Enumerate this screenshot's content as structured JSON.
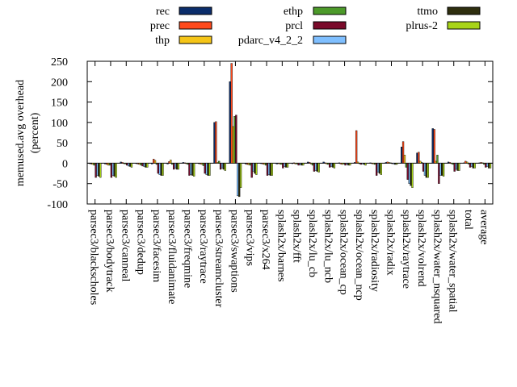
{
  "chart_data": {
    "type": "bar",
    "ylabel_lines": [
      "memused.avg overhead",
      "(percent)"
    ],
    "ylim": [
      -100,
      250
    ],
    "yticks": [
      -100,
      -50,
      0,
      50,
      100,
      150,
      200,
      250
    ],
    "legend_placement": "top",
    "categories": [
      "parsec3/blackscholes",
      "parsec3/bodytrack",
      "parsec3/canneal",
      "parsec3/dedup",
      "parsec3/facesim",
      "parsec3/fluidanimate",
      "parsec3/freqmine",
      "parsec3/raytrace",
      "parsec3/streamcluster",
      "parsec3/swaptions",
      "parsec3/vips",
      "parsec3/x264",
      "splash2x/barnes",
      "splash2x/fft",
      "splash2x/lu_cb",
      "splash2x/lu_ncb",
      "splash2x/ocean_cp",
      "splash2x/ocean_ncp",
      "splash2x/radiosity",
      "splash2x/radix",
      "splash2x/raytrace",
      "splash2x/volrend",
      "splash2x/water_nsquared",
      "splash2x/water_spatial",
      "total",
      "average"
    ],
    "series": [
      {
        "name": "rec",
        "color": "#0b2d6b",
        "values": [
          -1,
          -2,
          3,
          -1,
          -2,
          -2,
          2,
          -1,
          100,
          200,
          -2,
          -1,
          -2,
          -1,
          3,
          3,
          1,
          2,
          1,
          2,
          40,
          25,
          85,
          3,
          1,
          1
        ]
      },
      {
        "name": "prec",
        "color": "#ff4a1c",
        "values": [
          -2,
          -3,
          2,
          -2,
          10,
          4,
          1,
          -2,
          102,
          245,
          -3,
          -2,
          -1,
          1,
          2,
          1,
          -2,
          80,
          -1,
          3,
          53,
          27,
          83,
          2,
          5,
          2
        ]
      },
      {
        "name": "thp",
        "color": "#f5c518",
        "values": [
          -3,
          -5,
          -1,
          -3,
          7,
          8,
          0,
          -3,
          2,
          90,
          -4,
          -3,
          -2,
          -2,
          -2,
          -2,
          -3,
          3,
          -2,
          2,
          20,
          5,
          5,
          -1,
          3,
          1
        ]
      },
      {
        "name": "ethp",
        "color": "#4c9a2a",
        "values": [
          -5,
          -5,
          -2,
          -5,
          -3,
          -3,
          -3,
          -6,
          5,
          115,
          -5,
          -5,
          -3,
          -2,
          -5,
          -3,
          -2,
          -1,
          -3,
          1,
          -10,
          2,
          20,
          -3,
          -2,
          -3
        ]
      },
      {
        "name": "prcl",
        "color": "#7a0a2a",
        "values": [
          -35,
          -35,
          -5,
          -7,
          -25,
          -15,
          -30,
          -25,
          -15,
          118,
          -35,
          -30,
          -12,
          -5,
          -20,
          -10,
          -5,
          -3,
          -30,
          -1,
          -40,
          -20,
          -50,
          -20,
          -10,
          -10
        ]
      },
      {
        "name": "pdarc_v4_2_2",
        "color": "#7fbfff",
        "values": [
          -30,
          -30,
          -7,
          -8,
          -28,
          -12,
          -28,
          -28,
          -12,
          -80,
          -20,
          -28,
          -8,
          -4,
          -18,
          -8,
          -3,
          -2,
          -22,
          -2,
          -50,
          -30,
          -30,
          -15,
          -8,
          -8
        ]
      },
      {
        "name": "ttmo",
        "color": "#2e2e0e",
        "values": [
          -32,
          -32,
          -8,
          -10,
          -30,
          -15,
          -30,
          -30,
          -15,
          -82,
          -25,
          -30,
          -10,
          -5,
          -20,
          -10,
          -5,
          -3,
          -25,
          -3,
          -55,
          -35,
          -30,
          -18,
          -12,
          -12
        ]
      },
      {
        "name": "plrus-2",
        "color": "#a8d418",
        "values": [
          -35,
          -35,
          -10,
          -10,
          -30,
          -15,
          -32,
          -30,
          -18,
          -60,
          -28,
          -30,
          -10,
          -5,
          -22,
          -12,
          -5,
          -5,
          -28,
          -3,
          -60,
          -35,
          -32,
          -18,
          -12,
          -12
        ]
      }
    ]
  }
}
